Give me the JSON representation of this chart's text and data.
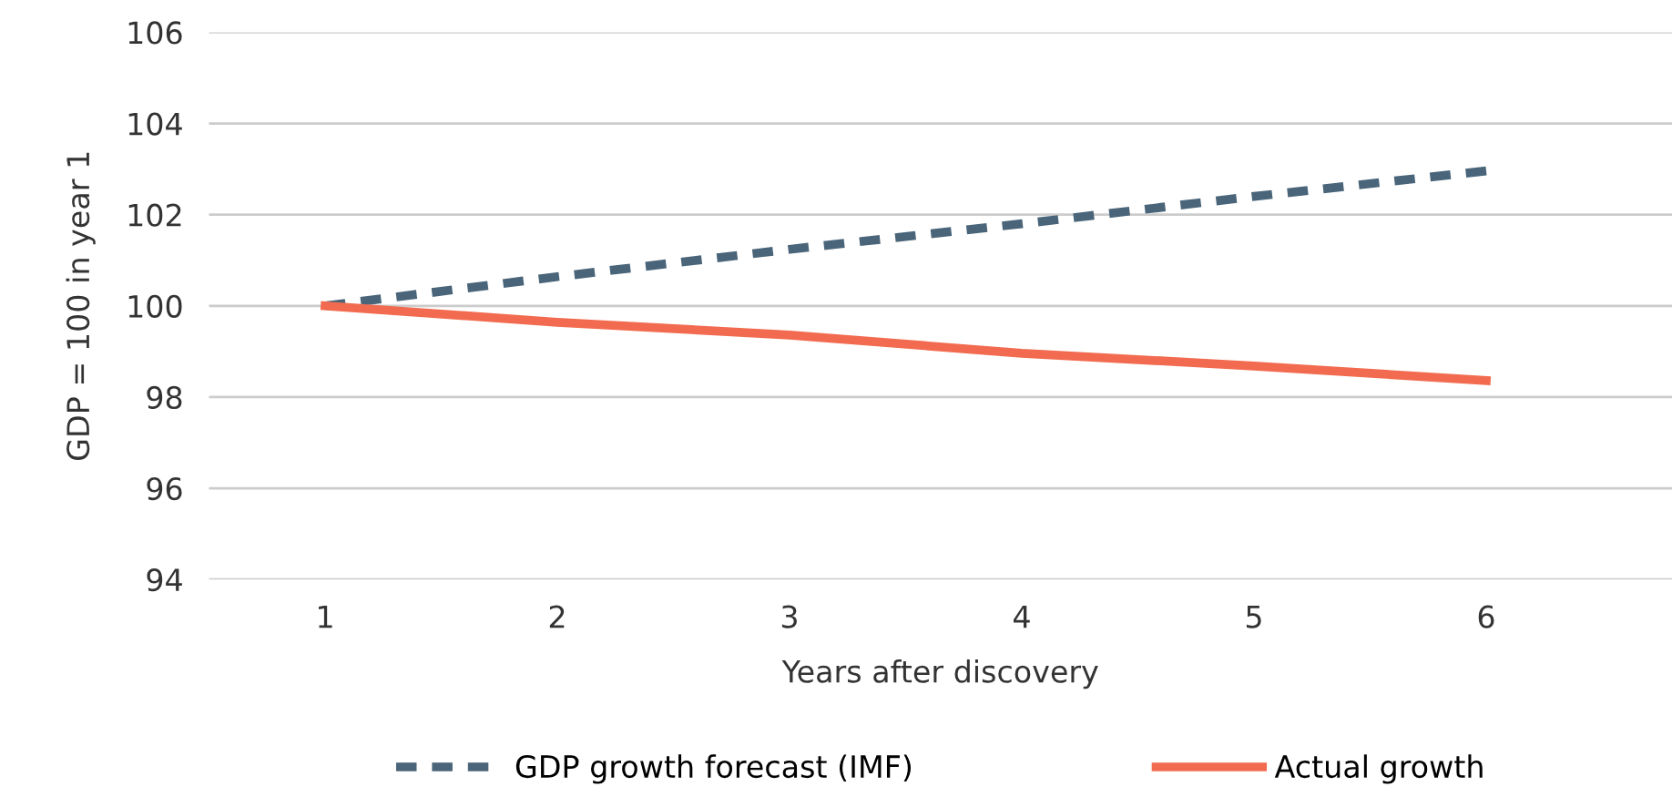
{
  "chart_data": {
    "type": "line",
    "xlabel": "Years after discovery",
    "ylabel": "GDP = 100 in year 1",
    "categories": [
      "1",
      "2",
      "3",
      "4",
      "5",
      "6"
    ],
    "series": [
      {
        "name": "GDP growth forecast (IMF)",
        "color": "#4a6579",
        "line_style": "dashed",
        "values": [
          100,
          100.64,
          101.24,
          101.8,
          102.4,
          102.96
        ]
      },
      {
        "name": "Actual growth",
        "color": "#f26b50",
        "line_style": "solid",
        "values": [
          100,
          99.64,
          99.36,
          98.96,
          98.68,
          98.36
        ]
      }
    ],
    "ylim": [
      94,
      106
    ],
    "yticks": [
      94,
      96,
      98,
      100,
      102,
      104,
      106
    ],
    "grid": "y",
    "legend": "bottom",
    "marker": "none"
  }
}
